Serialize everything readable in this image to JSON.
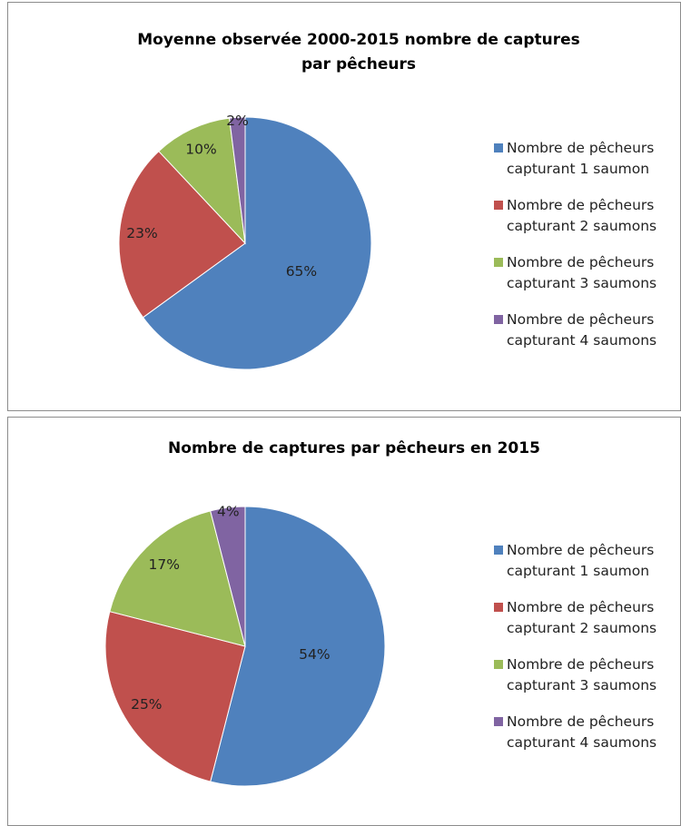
{
  "chart_data": [
    {
      "type": "pie",
      "title": "Moyenne observée 2000-2015 nombre de captures par pêcheurs",
      "categories": [
        "Nombre de pêcheurs capturant 1 saumon",
        "Nombre de pêcheurs capturant 2 saumons",
        "Nombre de pêcheurs capturant 3 saumons",
        "Nombre de pêcheurs capturant 4 saumons"
      ],
      "values": [
        65,
        23,
        10,
        2
      ],
      "value_labels": [
        "65%",
        "23%",
        "10%",
        "2%"
      ],
      "colors": [
        "#4f81bd",
        "#c0504d",
        "#9bbb59",
        "#8064a2"
      ],
      "legend": "right"
    },
    {
      "type": "pie",
      "title": "Nombre de captures par pêcheurs en 2015",
      "categories": [
        "Nombre de pêcheurs capturant 1 saumon",
        "Nombre de pêcheurs capturant 2 saumons",
        "Nombre de pêcheurs capturant 3 saumons",
        "Nombre de pêcheurs capturant 4 saumons"
      ],
      "values": [
        54,
        25,
        17,
        4
      ],
      "value_labels": [
        "54%",
        "25%",
        "17%",
        "4%"
      ],
      "colors": [
        "#4f81bd",
        "#c0504d",
        "#9bbb59",
        "#8064a2"
      ],
      "legend": "right"
    }
  ]
}
